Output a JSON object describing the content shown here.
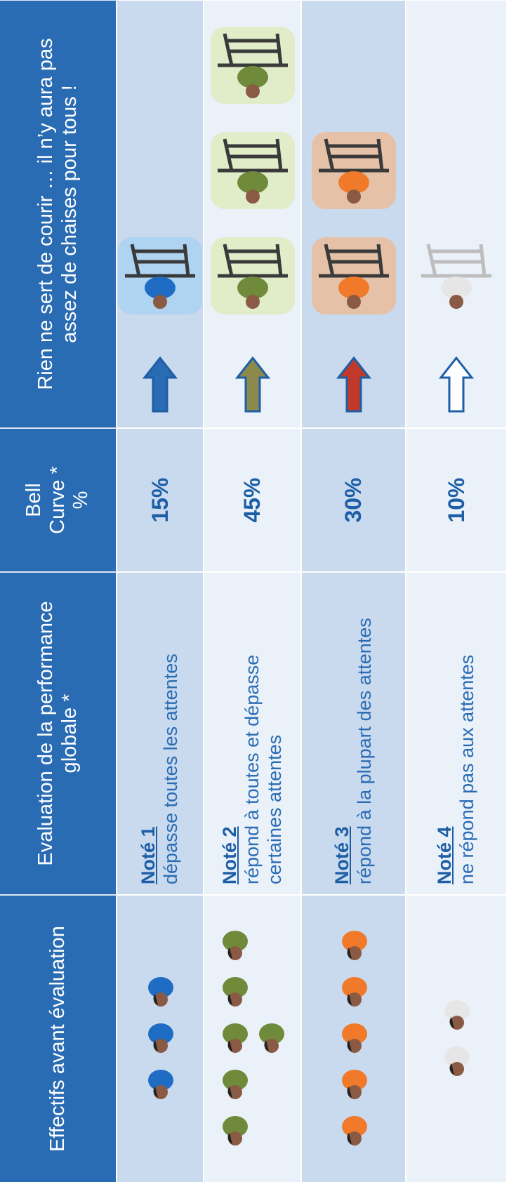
{
  "table": {
    "header": [
      "Effectifs avant évaluation",
      "Evaluation de la performance globale *",
      "Bell Curve * %",
      "Rien ne sert de courir … il n’y aura pas assez de chaises pour tous  !"
    ],
    "rows": [
      {
        "grade": "Noté 1",
        "description": "dépasse toutes les attentes",
        "percent": "15%"
      },
      {
        "grade": "Noté 2",
        "description": "répond à toutes et dépasse certaines attentes",
        "percent": "45%"
      },
      {
        "grade": "Noté 3",
        "description": "répond à la plupart des attentes",
        "percent": "30%"
      },
      {
        "grade": "Noté 4",
        "description": "ne répond pas aux attentes",
        "percent": "10%"
      }
    ]
  }
}
